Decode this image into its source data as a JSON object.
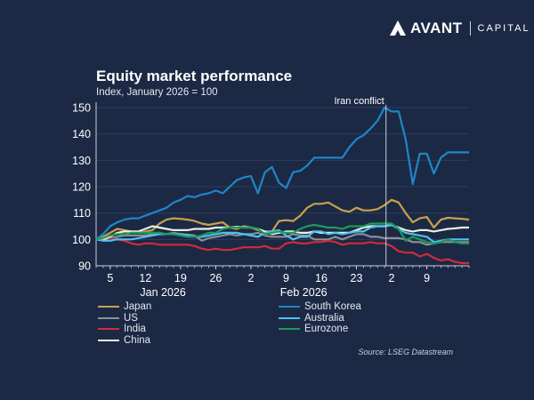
{
  "brand": {
    "name": "AVANT",
    "suffix": "CAPITAL",
    "icon": "avant-logo-icon"
  },
  "chart_data": {
    "type": "line",
    "title": "Equity market performance",
    "subtitle": "Index, January 2026 = 100",
    "xlabel": "",
    "ylabel": "",
    "ylim": [
      90,
      152
    ],
    "yticks": [
      90,
      100,
      110,
      120,
      130,
      140,
      150
    ],
    "x_unit": "trading day index (0 = 31 Dec 2025)",
    "x_range": [
      0,
      53
    ],
    "xticks": [
      {
        "index": 2,
        "label": "5"
      },
      {
        "index": 7,
        "label": "12"
      },
      {
        "index": 12,
        "label": "19"
      },
      {
        "index": 17,
        "label": "26"
      },
      {
        "index": 22,
        "label": "2"
      },
      {
        "index": 27,
        "label": "9"
      },
      {
        "index": 32,
        "label": "16"
      },
      {
        "index": 37,
        "label": "23"
      },
      {
        "index": 42,
        "label": "2"
      },
      {
        "index": 47,
        "label": "9"
      }
    ],
    "month_labels": [
      {
        "index": 9.5,
        "label": "Jan 2026"
      },
      {
        "index": 29.5,
        "label": "Feb 2026"
      }
    ],
    "grid": true,
    "annotation": {
      "label": "Iran conflict",
      "index": 41.2
    },
    "legend_position": "bottom",
    "series": [
      {
        "name": "Japan",
        "color": "#c9a24a",
        "values": [
          100,
          101,
          102.5,
          104,
          103.5,
          103,
          102.5,
          103,
          103.5,
          106,
          107.5,
          108,
          107.8,
          107.5,
          107,
          106,
          105.5,
          106,
          106.5,
          104.5,
          104,
          105,
          104.5,
          103.5,
          103,
          103,
          107,
          107.3,
          107,
          109,
          112,
          113.5,
          113.5,
          114,
          112.5,
          111,
          110.5,
          112,
          111,
          111,
          111.5,
          113,
          115,
          114,
          110,
          106.5,
          108,
          108.5,
          104.5,
          107.5,
          108.2,
          108,
          107.8,
          107.5
        ]
      },
      {
        "name": "US",
        "color": "#8c8f96",
        "values": [
          100,
          100,
          100.5,
          101,
          101.5,
          101.5,
          101.5,
          101.5,
          102,
          102.5,
          102,
          102.5,
          102,
          101.8,
          101.5,
          99.5,
          100.5,
          101,
          101.5,
          102,
          101.5,
          102,
          102,
          102.5,
          101.5,
          101,
          101,
          101,
          102,
          101.5,
          101.5,
          100,
          100,
          100,
          101,
          100,
          101,
          102,
          102,
          101,
          101,
          100.5,
          100.5,
          100.5,
          100,
          99,
          99,
          98,
          98.5,
          99,
          99,
          99,
          99,
          99
        ]
      },
      {
        "name": "India",
        "color": "#d42a3a",
        "values": [
          100,
          100.5,
          100.5,
          100,
          99.5,
          98.5,
          98,
          98.5,
          98.5,
          98,
          98,
          98,
          98,
          98,
          97.5,
          96.5,
          96,
          96.5,
          96,
          96,
          96.5,
          97,
          97,
          97,
          97.5,
          96.5,
          96.5,
          98.5,
          99,
          98.5,
          98.5,
          99,
          99,
          99.5,
          99,
          98,
          98.5,
          98.5,
          98.5,
          99,
          98.5,
          98.5,
          97.5,
          95.5,
          95,
          95,
          93.5,
          94.5,
          93,
          92,
          92.5,
          91.5,
          91,
          91
        ]
      },
      {
        "name": "China",
        "color": "#e8f0e0",
        "values": [
          100,
          100,
          101,
          102.5,
          103,
          103,
          103,
          104,
          105,
          104.5,
          104,
          103.5,
          103.5,
          103.5,
          104,
          104,
          104,
          104.5,
          104.5,
          104.5,
          104.8,
          104.5,
          104.5,
          104,
          103,
          102,
          102.5,
          103,
          103,
          102.5,
          102.5,
          103,
          102.5,
          102.5,
          102.5,
          102.5,
          102.5,
          103.5,
          104.5,
          105,
          105,
          105,
          105.5,
          104.5,
          103.5,
          103,
          103.5,
          103.5,
          103,
          103.5,
          104,
          104.2,
          104.5,
          104.5
        ]
      },
      {
        "name": "South Korea",
        "color": "#1f86c9",
        "values": [
          100,
          102,
          105,
          106.5,
          107.5,
          108,
          108,
          109,
          110,
          111,
          112,
          114,
          115,
          116.5,
          116,
          117,
          117.5,
          118.5,
          117.5,
          120,
          122.5,
          123.5,
          124,
          117.5,
          125.5,
          127.5,
          121.5,
          119.5,
          125.5,
          126,
          128,
          131,
          131,
          131,
          131,
          131,
          135,
          138,
          139.5,
          142,
          145,
          150,
          148.5,
          148.5,
          138,
          121,
          132.5,
          132.5,
          125,
          131,
          133,
          133,
          133,
          133
        ]
      },
      {
        "name": "Australia",
        "color": "#4cc3ee",
        "values": [
          100,
          99.5,
          99.5,
          100,
          100,
          100,
          100.5,
          101,
          101.5,
          102,
          102,
          102,
          102,
          101.5,
          101,
          101,
          101.5,
          102,
          102.5,
          102.5,
          102.5,
          102,
          101.5,
          101,
          102.5,
          103,
          103.5,
          101.5,
          100,
          101,
          101,
          103,
          103,
          102,
          102.5,
          102,
          102.5,
          103,
          103,
          104.5,
          105,
          105,
          105.5,
          104,
          102.5,
          102,
          101.5,
          101,
          99,
          99.5,
          100,
          100,
          100,
          100
        ]
      },
      {
        "name": "Eurozone",
        "color": "#1e9a5a",
        "values": [
          100,
          100.5,
          101.5,
          102,
          102,
          102.5,
          102.5,
          102.5,
          102.5,
          102.5,
          102,
          102,
          101.5,
          101,
          101,
          101.5,
          102.5,
          102.5,
          104,
          104.5,
          104.5,
          104.5,
          104.5,
          104,
          102,
          102.5,
          103,
          102.5,
          102.5,
          104,
          105,
          105.5,
          105,
          104.5,
          104.5,
          104,
          105,
          105,
          105,
          106,
          106,
          106,
          106,
          104,
          99.5,
          101,
          100,
          99,
          98.5,
          99,
          100,
          99,
          98.5,
          98.5
        ]
      }
    ]
  },
  "source": "Source: LSEG Datastream"
}
